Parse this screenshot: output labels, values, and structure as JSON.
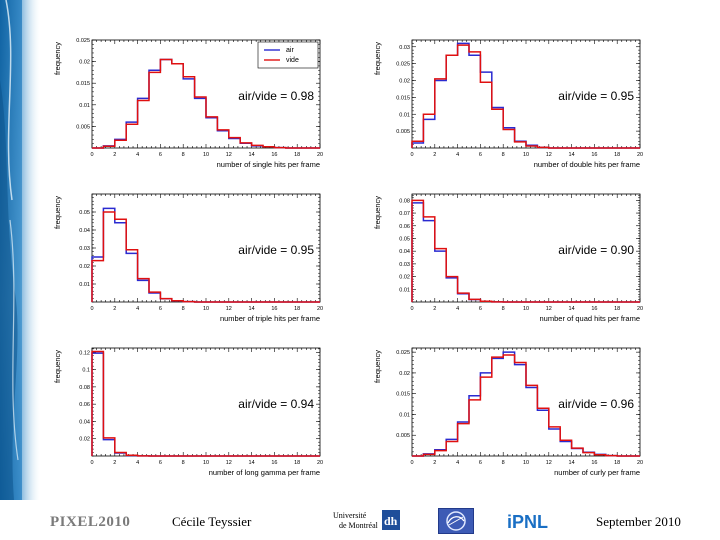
{
  "chart_data": [
    {
      "type": "histogram",
      "xlabel": "number of single hits per frame",
      "ylabel": "frequency",
      "annotation": "air/vide = 0.98",
      "xlim": [
        0,
        20
      ],
      "ylim": [
        0,
        0.025
      ],
      "xticks": [
        "0",
        "2",
        "4",
        "6",
        "8",
        "10",
        "12",
        "14",
        "16",
        "18",
        "20"
      ],
      "yticks": [
        {
          "v": 0.005,
          "label": "0.005"
        },
        {
          "v": 0.01,
          "label": "0.01"
        },
        {
          "v": 0.015,
          "label": "0.015"
        },
        {
          "v": 0.02,
          "label": "0.02"
        },
        {
          "v": 0.025,
          "label": "0.025"
        }
      ],
      "bin_width": 1,
      "legend": [
        "air",
        "vide"
      ],
      "series": [
        {
          "name": "air",
          "color": "#2a2ad0",
          "values": [
            0,
            0.0005,
            0.002,
            0.006,
            0.0115,
            0.018,
            0.0205,
            0.0195,
            0.016,
            0.0115,
            0.007,
            0.004,
            0.0022,
            0.0011,
            0.0005,
            0.0003,
            0.0001,
            0,
            0,
            0
          ]
        },
        {
          "name": "vide",
          "color": "#e01010",
          "values": [
            0,
            0.0004,
            0.0018,
            0.0055,
            0.011,
            0.0175,
            0.0205,
            0.0195,
            0.0165,
            0.0118,
            0.0072,
            0.0042,
            0.0024,
            0.0012,
            0.0006,
            0.0003,
            0.0001,
            0,
            0,
            0
          ]
        }
      ]
    },
    {
      "type": "histogram",
      "xlabel": "number of double hits per frame",
      "ylabel": "frequency",
      "annotation": "air/vide = 0.95",
      "xlim": [
        0,
        20
      ],
      "ylim": [
        0,
        0.032
      ],
      "xticks": [
        "0",
        "2",
        "4",
        "6",
        "8",
        "10",
        "12",
        "14",
        "16",
        "18",
        "20"
      ],
      "yticks": [
        {
          "v": 0.005,
          "label": "0.005"
        },
        {
          "v": 0.01,
          "label": "0.01"
        },
        {
          "v": 0.015,
          "label": "0.015"
        },
        {
          "v": 0.02,
          "label": "0.02"
        },
        {
          "v": 0.025,
          "label": "0.025"
        },
        {
          "v": 0.03,
          "label": "0.03"
        }
      ],
      "bin_width": 1,
      "series": [
        {
          "name": "air",
          "color": "#2a2ad0",
          "values": [
            0.0015,
            0.0085,
            0.02,
            0.0275,
            0.031,
            0.0275,
            0.0225,
            0.012,
            0.006,
            0.002,
            0.0008,
            0.0002,
            0,
            0,
            0,
            0,
            0,
            0,
            0,
            0
          ]
        },
        {
          "name": "vide",
          "color": "#e01010",
          "values": [
            0.002,
            0.01,
            0.0205,
            0.0275,
            0.0305,
            0.0285,
            0.0195,
            0.0115,
            0.0055,
            0.0018,
            0.0006,
            0.0002,
            0,
            0,
            0,
            0,
            0,
            0,
            0,
            0
          ]
        }
      ]
    },
    {
      "type": "histogram",
      "xlabel": "number of triple hits per frame",
      "ylabel": "frequency",
      "annotation": "air/vide = 0.95",
      "xlim": [
        0,
        20
      ],
      "ylim": [
        0,
        0.06
      ],
      "xticks": [
        "0",
        "2",
        "4",
        "6",
        "8",
        "10",
        "12",
        "14",
        "16",
        "18",
        "20"
      ],
      "yticks": [
        {
          "v": 0.01,
          "label": "0.01"
        },
        {
          "v": 0.02,
          "label": "0.02"
        },
        {
          "v": 0.03,
          "label": "0.03"
        },
        {
          "v": 0.04,
          "label": "0.04"
        },
        {
          "v": 0.05,
          "label": "0.05"
        }
      ],
      "bin_width": 1,
      "series": [
        {
          "name": "air",
          "color": "#2a2ad0",
          "values": [
            0.025,
            0.052,
            0.044,
            0.027,
            0.012,
            0.005,
            0.0018,
            0.0006,
            0.0002,
            0,
            0,
            0,
            0,
            0,
            0,
            0,
            0,
            0,
            0,
            0
          ]
        },
        {
          "name": "vide",
          "color": "#e01010",
          "values": [
            0.023,
            0.05,
            0.046,
            0.029,
            0.013,
            0.0055,
            0.0019,
            0.0007,
            0.0002,
            0,
            0,
            0,
            0,
            0,
            0,
            0,
            0,
            0,
            0,
            0
          ]
        }
      ]
    },
    {
      "type": "histogram",
      "xlabel": "number of quad hits per frame",
      "ylabel": "frequency",
      "annotation": "air/vide = 0.90",
      "xlim": [
        0,
        20
      ],
      "ylim": [
        0,
        0.085
      ],
      "xticks": [
        "0",
        "2",
        "4",
        "6",
        "8",
        "10",
        "12",
        "14",
        "16",
        "18",
        "20"
      ],
      "yticks": [
        {
          "v": 0.01,
          "label": "0.01"
        },
        {
          "v": 0.02,
          "label": "0.02"
        },
        {
          "v": 0.03,
          "label": "0.03"
        },
        {
          "v": 0.04,
          "label": "0.04"
        },
        {
          "v": 0.05,
          "label": "0.05"
        },
        {
          "v": 0.06,
          "label": "0.06"
        },
        {
          "v": 0.07,
          "label": "0.07"
        },
        {
          "v": 0.08,
          "label": "0.08"
        }
      ],
      "bin_width": 1,
      "series": [
        {
          "name": "air",
          "color": "#2a2ad0",
          "values": [
            0.078,
            0.064,
            0.04,
            0.019,
            0.0065,
            0.002,
            0.0006,
            0.0001,
            0,
            0,
            0,
            0,
            0,
            0,
            0,
            0,
            0,
            0,
            0,
            0
          ]
        },
        {
          "name": "vide",
          "color": "#e01010",
          "values": [
            0.08,
            0.067,
            0.042,
            0.02,
            0.007,
            0.0021,
            0.0006,
            0.0001,
            0,
            0,
            0,
            0,
            0,
            0,
            0,
            0,
            0,
            0,
            0,
            0
          ]
        }
      ]
    },
    {
      "type": "histogram",
      "xlabel": "number of long gamma per frame",
      "ylabel": "frequency",
      "annotation": "air/vide = 0.94",
      "xlim": [
        0,
        20
      ],
      "ylim": [
        0,
        0.125
      ],
      "xticks": [
        "0",
        "2",
        "4",
        "6",
        "8",
        "10",
        "12",
        "14",
        "16",
        "18",
        "20"
      ],
      "yticks": [
        {
          "v": 0.02,
          "label": "0.02"
        },
        {
          "v": 0.04,
          "label": "0.04"
        },
        {
          "v": 0.06,
          "label": "0.06"
        },
        {
          "v": 0.08,
          "label": "0.08"
        },
        {
          "v": 0.1,
          "label": "0.1"
        },
        {
          "v": 0.12,
          "label": "0.12"
        }
      ],
      "bin_width": 1,
      "series": [
        {
          "name": "air",
          "color": "#2a2ad0",
          "values": [
            0.119,
            0.019,
            0.0035,
            0.0006,
            0.0001,
            0,
            0,
            0,
            0,
            0,
            0,
            0,
            0,
            0,
            0,
            0,
            0,
            0,
            0,
            0
          ]
        },
        {
          "name": "vide",
          "color": "#e01010",
          "values": [
            0.121,
            0.021,
            0.004,
            0.0008,
            0.0002,
            0,
            0,
            0,
            0,
            0,
            0,
            0,
            0,
            0,
            0,
            0,
            0,
            0,
            0,
            0
          ]
        }
      ]
    },
    {
      "type": "histogram",
      "xlabel": "number of curly per frame",
      "ylabel": "frequency",
      "annotation": "air/vide = 0.96",
      "xlim": [
        0,
        20
      ],
      "ylim": [
        0,
        0.026
      ],
      "xticks": [
        "0",
        "2",
        "4",
        "6",
        "8",
        "10",
        "12",
        "14",
        "16",
        "18",
        "20"
      ],
      "yticks": [
        {
          "v": 0.005,
          "label": "0.005"
        },
        {
          "v": 0.01,
          "label": "0.01"
        },
        {
          "v": 0.015,
          "label": "0.015"
        },
        {
          "v": 0.02,
          "label": "0.02"
        },
        {
          "v": 0.025,
          "label": "0.025"
        }
      ],
      "bin_width": 1,
      "series": [
        {
          "name": "air",
          "color": "#2a2ad0",
          "values": [
            0,
            0.0005,
            0.0015,
            0.004,
            0.0082,
            0.0145,
            0.02,
            0.0235,
            0.025,
            0.022,
            0.0165,
            0.011,
            0.0065,
            0.0035,
            0.0018,
            0.0009,
            0.0004,
            0.0001,
            0,
            0
          ]
        },
        {
          "name": "vide",
          "color": "#e01010",
          "values": [
            0,
            0.0004,
            0.0013,
            0.0035,
            0.0078,
            0.0135,
            0.019,
            0.0238,
            0.0243,
            0.0225,
            0.017,
            0.0115,
            0.007,
            0.0038,
            0.0019,
            0.0008,
            0.0003,
            0.0001,
            0,
            0
          ]
        }
      ]
    }
  ],
  "footer": {
    "conference": "PIXEL2010",
    "author": "Cécile Teyssier",
    "date": "September 2010",
    "logos": {
      "udem_line1": "Université",
      "udem_line2": "de Montréal",
      "udem_mark": "dh",
      "ipnl": "iPNL"
    }
  },
  "colors": {
    "background": "#ffffff",
    "blue_accent": "#1e6fae",
    "frame": "#000000"
  }
}
